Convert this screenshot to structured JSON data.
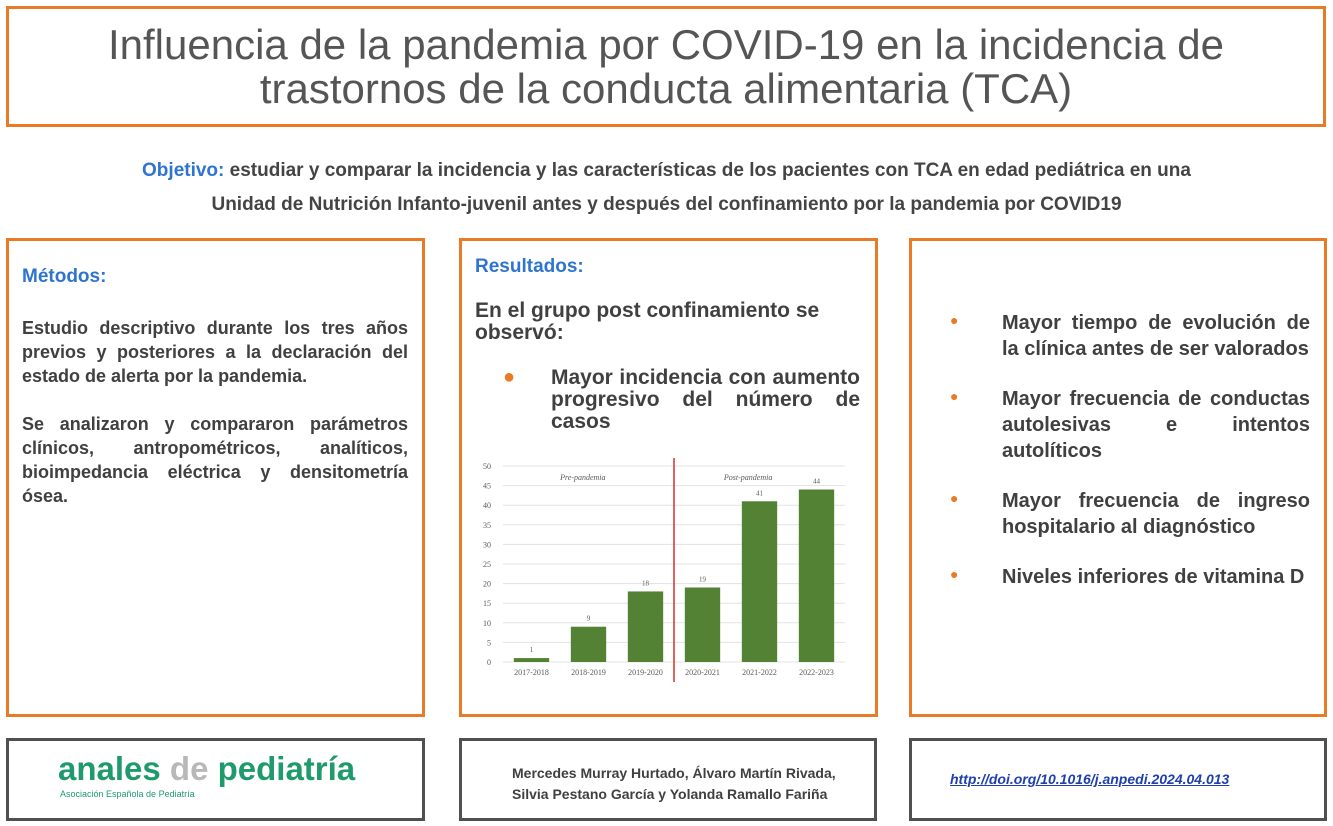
{
  "title_lines": [
    "Influencia de la pandemia por COVID-19 en la incidencia de",
    "trastornos de la conducta alimentaria (TCA)"
  ],
  "objective": {
    "label": "Objetivo:",
    "lines": [
      "estudiar y comparar  la incidencia y las características de los pacientes con TCA en edad pediátrica en una",
      "Unidad de Nutrición Infanto-juvenil antes y después del confinamiento por la pandemia por COVID19"
    ]
  },
  "methods": {
    "heading": "Métodos:",
    "paragraphs": [
      "Estudio descriptivo durante los tres años previos y posteriores a la declaración del estado de alerta por la pandemia.",
      "Se analizaron y compararon parámetros clínicos, antropométricos, analíticos, bioimpedancia eléctrica y densitometría ósea."
    ]
  },
  "results": {
    "heading": "Resultados:",
    "intro": "En el grupo post confinamiento se observó:",
    "bullets": [
      "Mayor incidencia con aumento progresivo del número de casos"
    ]
  },
  "chart_data": {
    "type": "bar",
    "categories": [
      "2017-2018",
      "2018-2019",
      "2019-2020",
      "2020-2021",
      "2021-2022",
      "2022-2023"
    ],
    "values": [
      1,
      9,
      18,
      19,
      41,
      44
    ],
    "color": "#548235",
    "ylim": [
      0,
      50
    ],
    "yticks": [
      0,
      5,
      10,
      15,
      20,
      25,
      30,
      35,
      40,
      45,
      50
    ],
    "grid": true,
    "annotations": [
      "Pre-pandemia",
      "Post-pandemia"
    ]
  },
  "findings": [
    "Mayor tiempo de evolución de la clínica antes de ser valorados",
    "Mayor frecuencia de conductas autolesivas e intentos autolíticos",
    "Mayor frecuencia de ingreso hospitalario al diagnóstico",
    "Niveles inferiores de vitamina D"
  ],
  "footer": {
    "logo": {
      "word1": "anales",
      "word2": "de",
      "word3": "pediatría",
      "subtitle": "Asociación Española de Pediatría"
    },
    "authors": [
      "Mercedes Murray Hurtado, Álvaro Martín Rivada,",
      "Silvia Pestano García y Yolanda Ramallo Fariña"
    ],
    "doi": "http://doi.org/10.1016/j.anpedi.2024.04.013"
  }
}
